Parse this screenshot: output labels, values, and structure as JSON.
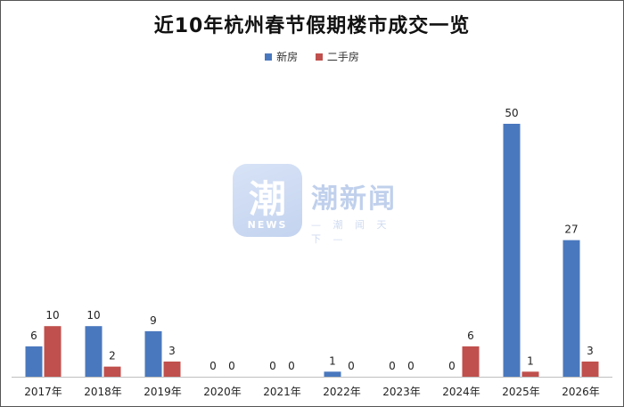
{
  "chart_data": {
    "type": "bar",
    "title": "近10年杭州春节假期楼市成交一览",
    "categories": [
      "2017年",
      "2018年",
      "2019年",
      "2020年",
      "2021年",
      "2022年",
      "2023年",
      "2024年",
      "2025年",
      "2026年"
    ],
    "series": [
      {
        "name": "新房",
        "color": "#4a78be",
        "values": [
          6,
          10,
          9,
          0,
          0,
          1,
          0,
          0,
          50,
          27
        ]
      },
      {
        "name": "二手房",
        "color": "#c0504d",
        "values": [
          10,
          2,
          3,
          0,
          0,
          0,
          0,
          6,
          1,
          3
        ]
      }
    ],
    "ylim": [
      0,
      55
    ],
    "grid": false,
    "legend_position": "top-center",
    "data_labels": true
  },
  "watermark": {
    "badge_glyph": "潮",
    "badge_text": "NEWS",
    "name": "潮新闻",
    "slogan": "— 潮 闻 天 下 —"
  }
}
